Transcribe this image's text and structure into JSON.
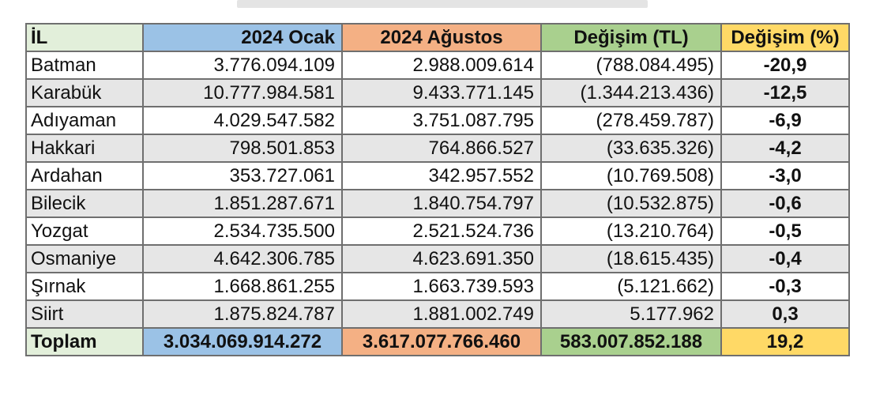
{
  "colors": {
    "header_il": "#e2efda",
    "header_ocak": "#9bc2e6",
    "header_agustos": "#f4b084",
    "header_degisim_tl": "#a9d08e",
    "header_degisim_pct": "#ffd966",
    "row_alt": "#e6e6e6"
  },
  "table": {
    "headers": {
      "il": "İL",
      "ocak": "2024 Ocak",
      "agustos": "2024 Ağustos",
      "degisim_tl": "Değişim (TL)",
      "degisim_pct": "Değişim (%)"
    },
    "rows": [
      {
        "il": "Batman",
        "ocak": "3.776.094.109",
        "agustos": "2.988.009.614",
        "degisim_tl": "(788.084.495)",
        "degisim_pct": "-20,9"
      },
      {
        "il": "Karabük",
        "ocak": "10.777.984.581",
        "agustos": "9.433.771.145",
        "degisim_tl": "(1.344.213.436)",
        "degisim_pct": "-12,5"
      },
      {
        "il": "Adıyaman",
        "ocak": "4.029.547.582",
        "agustos": "3.751.087.795",
        "degisim_tl": "(278.459.787)",
        "degisim_pct": "-6,9"
      },
      {
        "il": "Hakkari",
        "ocak": "798.501.853",
        "agustos": "764.866.527",
        "degisim_tl": "(33.635.326)",
        "degisim_pct": "-4,2"
      },
      {
        "il": "Ardahan",
        "ocak": "353.727.061",
        "agustos": "342.957.552",
        "degisim_tl": "(10.769.508)",
        "degisim_pct": "-3,0"
      },
      {
        "il": "Bilecik",
        "ocak": "1.851.287.671",
        "agustos": "1.840.754.797",
        "degisim_tl": "(10.532.875)",
        "degisim_pct": "-0,6"
      },
      {
        "il": "Yozgat",
        "ocak": "2.534.735.500",
        "agustos": "2.521.524.736",
        "degisim_tl": "(13.210.764)",
        "degisim_pct": "-0,5"
      },
      {
        "il": "Osmaniye",
        "ocak": "4.642.306.785",
        "agustos": "4.623.691.350",
        "degisim_tl": "(18.615.435)",
        "degisim_pct": "-0,4"
      },
      {
        "il": "Şırnak",
        "ocak": "1.668.861.255",
        "agustos": "1.663.739.593",
        "degisim_tl": "(5.121.662)",
        "degisim_pct": "-0,3"
      },
      {
        "il": "Siirt",
        "ocak": "1.875.824.787",
        "agustos": "1.881.002.749",
        "degisim_tl": "5.177.962",
        "degisim_pct": "0,3"
      }
    ],
    "total": {
      "il": "Toplam",
      "ocak": "3.034.069.914.272",
      "agustos": "3.617.077.766.460",
      "degisim_tl": "583.007.852.188",
      "degisim_pct": "19,2"
    }
  }
}
